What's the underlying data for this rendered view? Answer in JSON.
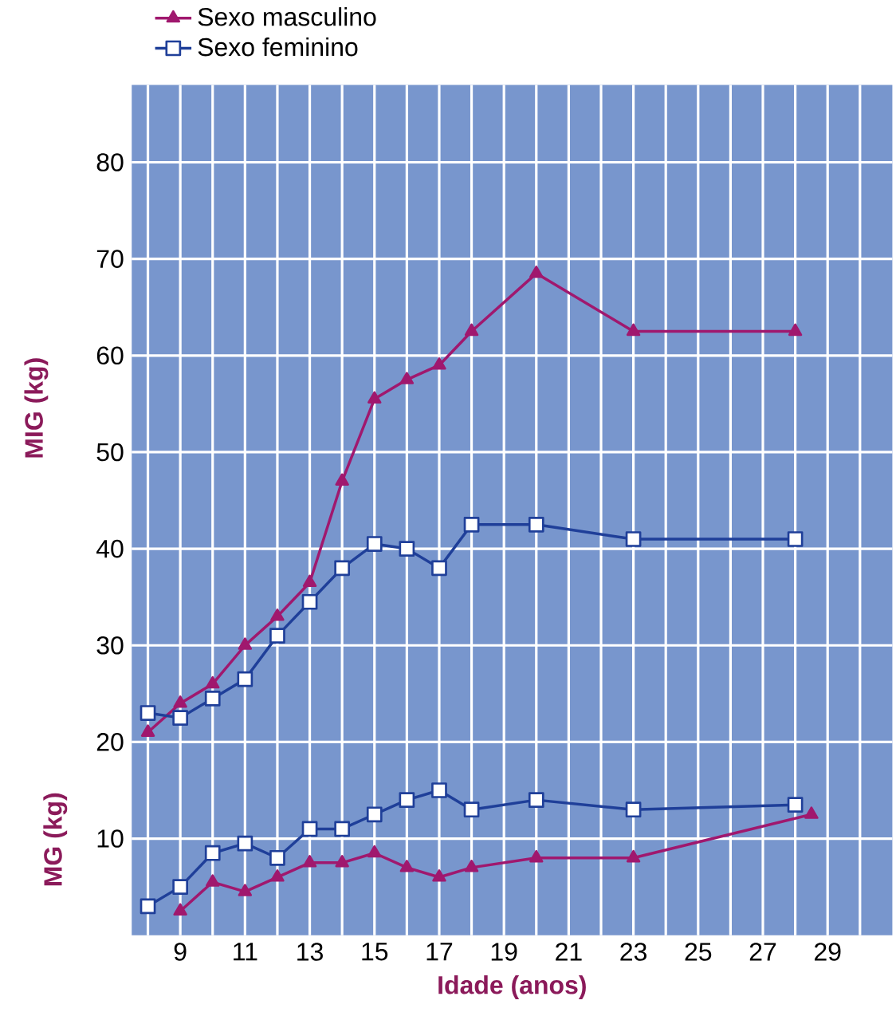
{
  "chart_data": {
    "type": "line",
    "xlabel": "Idade (anos)",
    "ylabel": "MIG (kg)",
    "annotations": [
      "MG (kg)"
    ],
    "xlim": [
      7.5,
      31
    ],
    "ylim": [
      0,
      88
    ],
    "xticks": [
      {
        "value": 8,
        "label": null
      },
      9,
      {
        "value": 10,
        "label": null
      },
      11,
      {
        "value": 12,
        "label": null
      },
      13,
      {
        "value": 14,
        "label": null
      },
      15,
      {
        "value": 16,
        "label": null
      },
      17,
      {
        "value": 18,
        "label": null
      },
      19,
      {
        "value": 20,
        "label": null
      },
      21,
      {
        "value": 22,
        "label": null
      },
      23,
      {
        "value": 24,
        "label": null
      },
      25,
      {
        "value": 26,
        "label": null
      },
      27,
      {
        "value": 28,
        "label": null
      },
      29,
      {
        "value": 30,
        "label": null
      }
    ],
    "yticks": [
      10,
      20,
      30,
      40,
      50,
      60,
      70,
      80
    ],
    "grid": true,
    "legend": "top left",
    "series": [
      {
        "name": "Sexo masculino",
        "color": "#a0186e",
        "marker": "triangle",
        "x": [
          8,
          9,
          10,
          11,
          12,
          13,
          14,
          15,
          16,
          17,
          18,
          20,
          23,
          28
        ],
        "values": [
          21,
          24,
          26,
          30,
          33,
          36.5,
          47,
          55.5,
          57.5,
          59,
          62.5,
          68.5,
          62.5,
          62.5
        ]
      },
      {
        "name": "Sexo feminino",
        "color": "#1f3f99",
        "marker": "square",
        "x": [
          8,
          9,
          10,
          11,
          12,
          13,
          14,
          15,
          16,
          17,
          18,
          20,
          23,
          28
        ],
        "values": [
          23,
          22.5,
          24.5,
          26.5,
          31,
          34.5,
          38,
          40.5,
          40,
          38,
          42.5,
          42.5,
          41,
          41
        ]
      },
      {
        "color": "#a0186e",
        "marker": "triangle",
        "x": [
          9,
          10,
          11,
          12,
          13,
          14,
          15,
          16,
          17,
          18,
          20,
          23,
          28.5
        ],
        "values": [
          2.5,
          5.5,
          4.5,
          6,
          7.5,
          7.5,
          8.5,
          7,
          6,
          7,
          8,
          8,
          12.5
        ]
      },
      {
        "color": "#1f3f99",
        "marker": "square",
        "x": [
          8,
          9,
          10,
          11,
          12,
          13,
          14,
          15,
          16,
          17,
          18,
          20,
          23,
          28
        ],
        "values": [
          3,
          5,
          8.5,
          9.5,
          8,
          11,
          11,
          12.5,
          14,
          15,
          13,
          14,
          13,
          13.5
        ]
      }
    ]
  }
}
